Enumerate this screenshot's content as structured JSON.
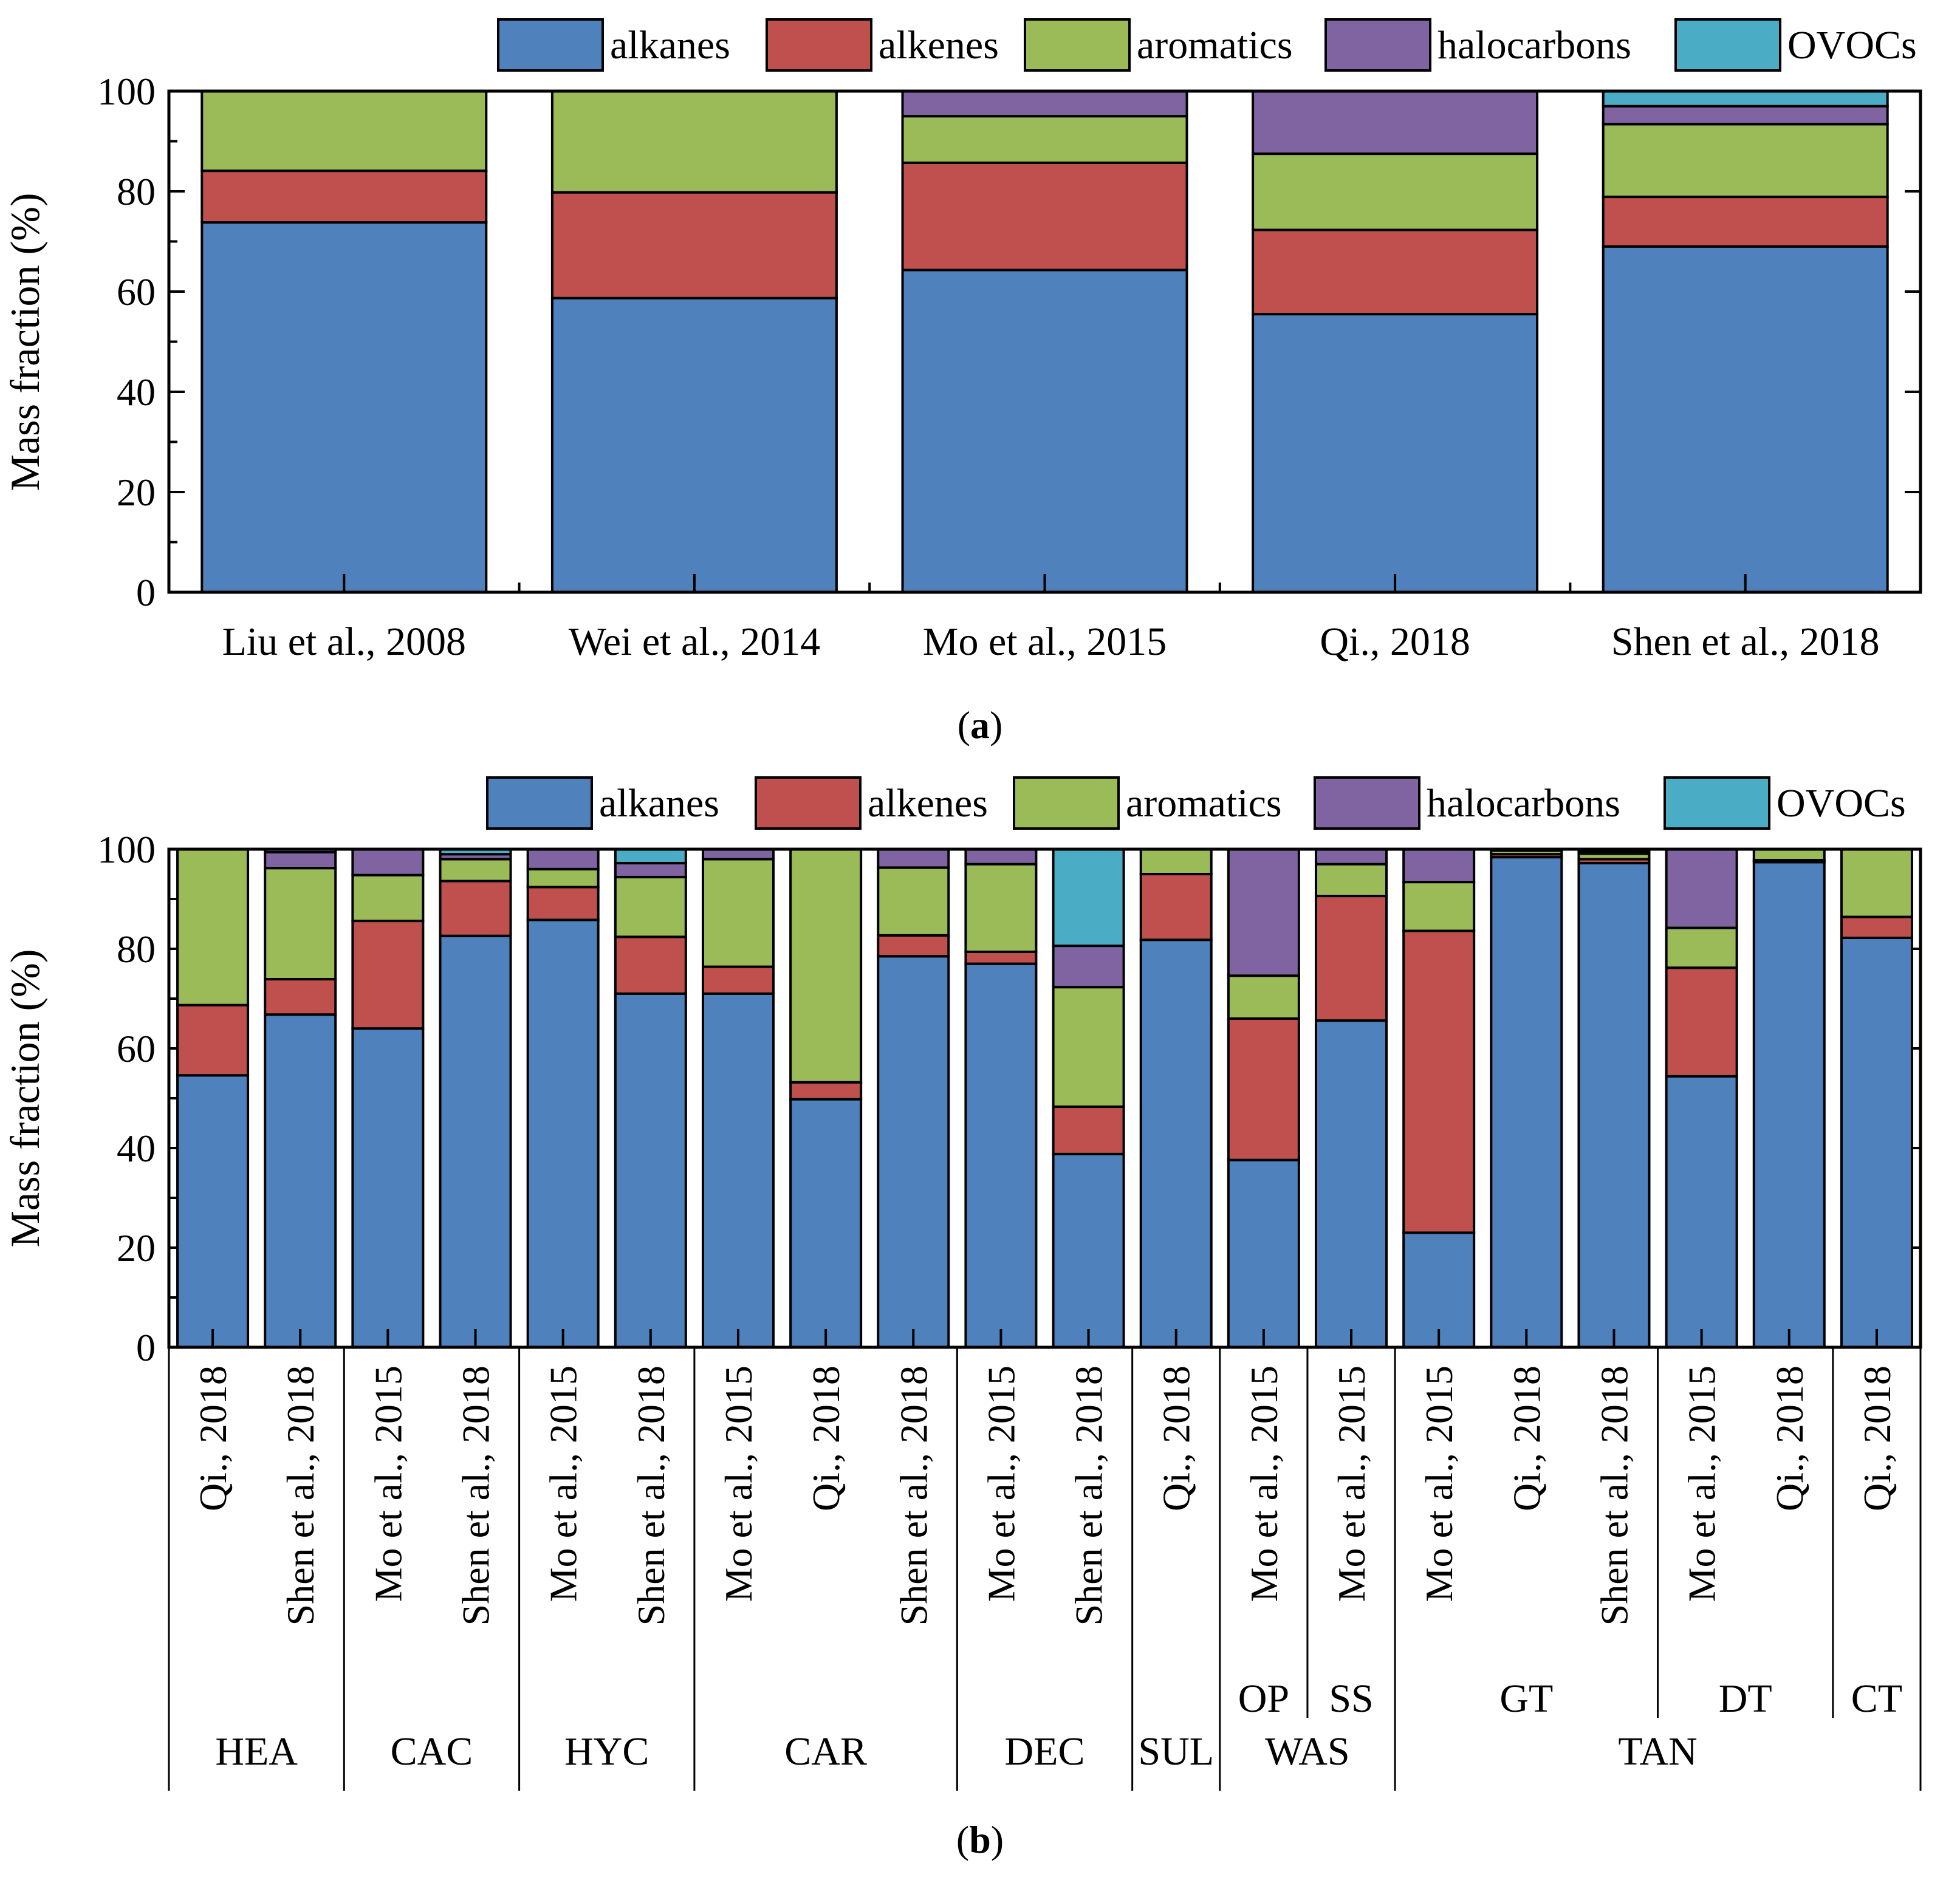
{
  "colors": {
    "alkanes": "#4f81bd",
    "alkenes": "#c0504d",
    "aromatics": "#9bbb59",
    "halocarbons": "#8064a2",
    "OVOCs": "#4bacc6"
  },
  "chart_data": [
    {
      "type": "bar",
      "stacked": true,
      "panel_label": "a",
      "ylabel": "Mass fraction (%)",
      "ylim": [
        0,
        100
      ],
      "yticks": [
        0,
        20,
        40,
        60,
        80,
        100
      ],
      "legend": {
        "placement": "top-right",
        "entries": [
          "alkanes",
          "alkenes",
          "aromatics",
          "halocarbons",
          "OVOCs"
        ]
      },
      "categories": [
        "Liu et al., 2008",
        "Wei et al., 2014",
        "Mo et al., 2015",
        "Qi., 2018",
        "Shen et al., 2018"
      ],
      "series": [
        {
          "name": "alkanes",
          "values": [
            73.8,
            58.7,
            64.3,
            55.5,
            69.0
          ]
        },
        {
          "name": "alkenes",
          "values": [
            10.3,
            21.1,
            21.4,
            16.8,
            9.9
          ]
        },
        {
          "name": "aromatics",
          "values": [
            15.9,
            20.2,
            9.3,
            15.2,
            14.5
          ]
        },
        {
          "name": "halocarbons",
          "values": [
            0,
            0,
            5.0,
            12.5,
            3.6
          ]
        },
        {
          "name": "OVOCs",
          "values": [
            0,
            0,
            0,
            0,
            3.0
          ]
        }
      ]
    },
    {
      "type": "bar",
      "stacked": true,
      "panel_label": "b",
      "ylabel": "Mass fraction (%)",
      "ylim": [
        0,
        100
      ],
      "yticks": [
        0,
        20,
        40,
        60,
        80,
        100
      ],
      "legend": {
        "placement": "top-right",
        "entries": [
          "alkanes",
          "alkenes",
          "aromatics",
          "halocarbons",
          "OVOCs"
        ]
      },
      "categories": [
        "Qi., 2018",
        "Shen et al., 2018",
        "Mo et al., 2015",
        "Shen et al., 2018",
        "Mo et al., 2015",
        "Shen et al., 2018",
        "Mo et al., 2015",
        "Qi., 2018",
        "Shen et al., 2018",
        "Mo et al., 2015",
        "Shen et al., 2018",
        "Qi., 2018",
        "Mo et al., 2015",
        "Mo et al., 2015",
        "Mo et al., 2015",
        "Qi., 2018",
        "Shen et al., 2018",
        "Mo et al., 2015",
        "Qi., 2018",
        "Qi., 2018"
      ],
      "subgroups": [
        {
          "label": "OP",
          "start": 12,
          "end": 12
        },
        {
          "label": "SS",
          "start": 13,
          "end": 13
        },
        {
          "label": "GT",
          "start": 14,
          "end": 16
        },
        {
          "label": "DT",
          "start": 17,
          "end": 18
        },
        {
          "label": "CT",
          "start": 19,
          "end": 19
        }
      ],
      "groups": [
        {
          "label": "HEA",
          "start": 0,
          "end": 1
        },
        {
          "label": "CAC",
          "start": 2,
          "end": 3
        },
        {
          "label": "HYC",
          "start": 4,
          "end": 5
        },
        {
          "label": "CAR",
          "start": 6,
          "end": 8
        },
        {
          "label": "DEC",
          "start": 9,
          "end": 10
        },
        {
          "label": "SUL",
          "start": 11,
          "end": 11
        },
        {
          "label": "WAS",
          "start": 12,
          "end": 13
        },
        {
          "label": "TAN",
          "start": 14,
          "end": 19
        }
      ],
      "series": [
        {
          "name": "alkanes",
          "values": [
            54.6,
            66.8,
            64.0,
            82.6,
            85.8,
            71.0,
            71.0,
            49.8,
            78.5,
            77.0,
            38.8,
            81.8,
            37.6,
            65.6,
            23.0,
            98.4,
            97.2,
            54.4,
            97.4,
            82.2
          ]
        },
        {
          "name": "alkenes",
          "values": [
            14.1,
            7.1,
            21.6,
            11.0,
            6.6,
            11.4,
            5.4,
            3.4,
            4.2,
            2.4,
            9.5,
            13.2,
            28.4,
            25.0,
            60.6,
            0.6,
            0.8,
            21.8,
            0.4,
            4.2
          ]
        },
        {
          "name": "aromatics",
          "values": [
            31.3,
            22.3,
            9.2,
            4.4,
            3.6,
            12.0,
            21.6,
            46.8,
            13.6,
            17.6,
            24.0,
            5.0,
            8.6,
            6.4,
            9.8,
            0.7,
            1.1,
            8.0,
            2.2,
            13.6
          ]
        },
        {
          "name": "halocarbons",
          "values": [
            0,
            3.2,
            5.2,
            1.0,
            4.0,
            2.8,
            2.0,
            0,
            3.7,
            3.0,
            8.3,
            0,
            25.4,
            3.0,
            6.6,
            0.3,
            0.5,
            15.8,
            0,
            0
          ]
        },
        {
          "name": "OVOCs",
          "values": [
            0,
            0.6,
            0,
            1.0,
            0,
            2.8,
            0,
            0,
            0,
            0,
            19.4,
            0,
            0,
            0,
            0,
            0,
            0.4,
            0,
            0,
            0
          ]
        }
      ]
    }
  ]
}
